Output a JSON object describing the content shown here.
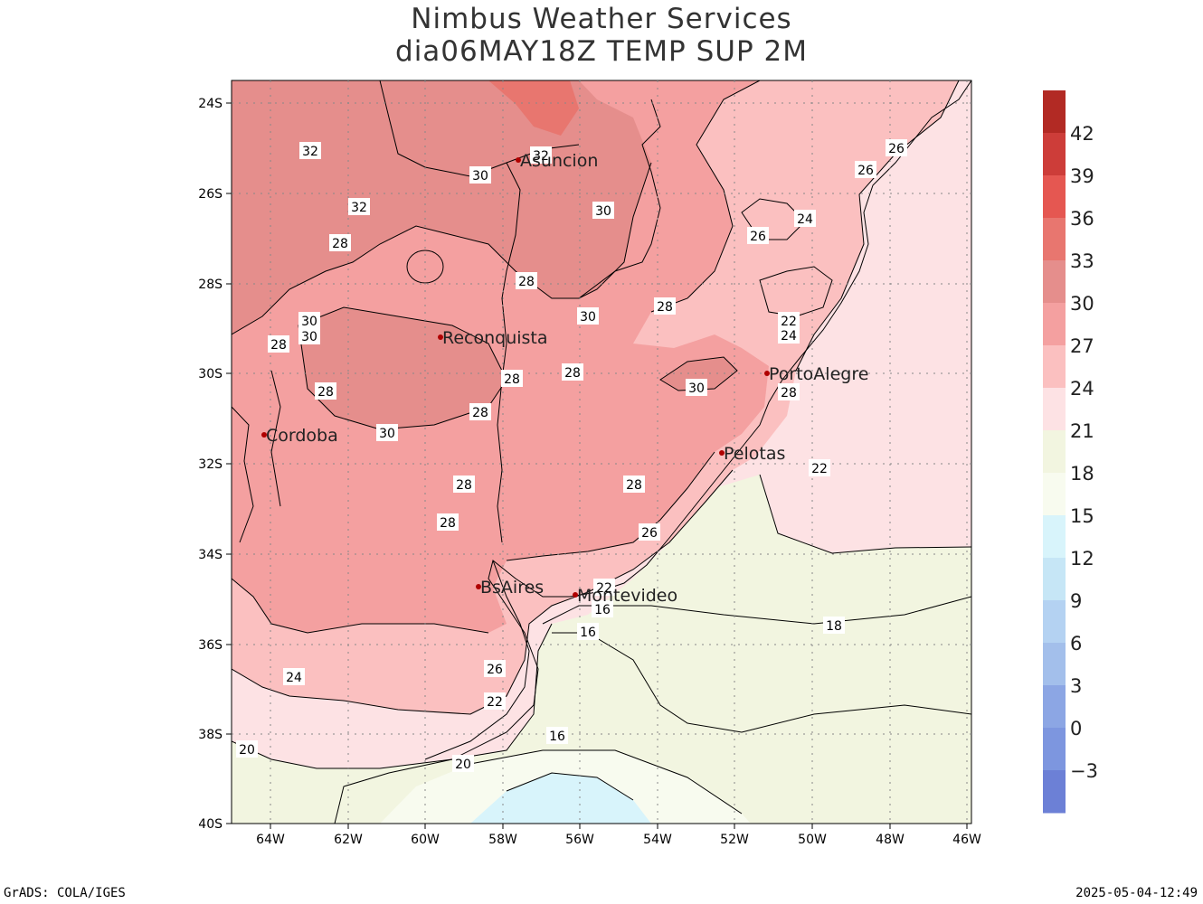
{
  "title": {
    "line1": "Nimbus Weather Services",
    "line2": "dia06MAY18Z TEMP SUP 2M"
  },
  "footer": {
    "left": "GrADS: COLA/IGES",
    "right": "2025-05-04-12:49"
  },
  "map": {
    "lat_labels": [
      "24S",
      "26S",
      "28S",
      "30S",
      "32S",
      "34S",
      "36S",
      "38S",
      "40S"
    ],
    "lon_labels": [
      "64W",
      "62W",
      "60W",
      "58W",
      "56W",
      "54W",
      "52W",
      "50W",
      "48W",
      "46W"
    ],
    "cities": [
      {
        "name": "Asuncion"
      },
      {
        "name": "Reconquista"
      },
      {
        "name": "PortoAlegre"
      },
      {
        "name": "Cordoba"
      },
      {
        "name": "Pelotas"
      },
      {
        "name": "BsAires"
      },
      {
        "name": "Montevideo"
      }
    ],
    "contour_labels": [
      "32",
      "32",
      "32",
      "30",
      "30",
      "30",
      "30",
      "30",
      "30",
      "30",
      "28",
      "28",
      "28",
      "28",
      "28",
      "28",
      "28",
      "28",
      "28",
      "28",
      "28",
      "28",
      "26",
      "26",
      "26",
      "26",
      "26",
      "24",
      "24",
      "24",
      "22",
      "22",
      "22",
      "22",
      "20",
      "20",
      "18",
      "16",
      "16",
      "16"
    ]
  },
  "colorbar": {
    "labels": [
      "42",
      "39",
      "36",
      "33",
      "30",
      "27",
      "24",
      "21",
      "18",
      "15",
      "12",
      "9",
      "6",
      "3",
      "0",
      "−3"
    ],
    "colors": [
      "#b22a24",
      "#cd3d39",
      "#e55751",
      "#e8766f",
      "#e58e8c",
      "#f4a0a0",
      "#fbc0c0",
      "#fde2e4",
      "#f2f5e0",
      "#f8fbef",
      "#d8f4fb",
      "#c6e6f6",
      "#b4d2f2",
      "#a3bfeb",
      "#8ca6e4",
      "#7d96df",
      "#6c80d6"
    ]
  }
}
